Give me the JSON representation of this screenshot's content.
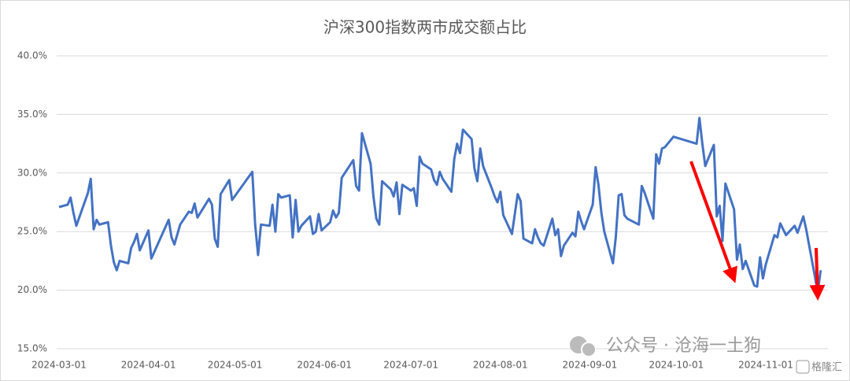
{
  "chart_data": {
    "type": "line",
    "title": "沪深300指数两市成交额占比",
    "x": [
      "2024-03-01",
      "2024-03-04",
      "2024-03-05",
      "2024-03-06",
      "2024-03-07",
      "2024-03-11",
      "2024-03-12",
      "2024-03-13",
      "2024-03-14",
      "2024-03-15",
      "2024-03-18",
      "2024-03-19",
      "2024-03-20",
      "2024-03-21",
      "2024-03-22",
      "2024-03-25",
      "2024-03-26",
      "2024-03-27",
      "2024-03-28",
      "2024-03-29",
      "2024-04-01",
      "2024-04-02",
      "2024-04-08",
      "2024-04-09",
      "2024-04-10",
      "2024-04-12",
      "2024-04-15",
      "2024-04-16",
      "2024-04-17",
      "2024-04-18",
      "2024-04-22",
      "2024-04-23",
      "2024-04-24",
      "2024-04-25",
      "2024-04-26",
      "2024-04-29",
      "2024-04-30",
      "2024-05-07",
      "2024-05-08",
      "2024-05-09",
      "2024-05-10",
      "2024-05-13",
      "2024-05-14",
      "2024-05-15",
      "2024-05-16",
      "2024-05-17",
      "2024-05-20",
      "2024-05-21",
      "2024-05-22",
      "2024-05-23",
      "2024-05-24",
      "2024-05-27",
      "2024-05-28",
      "2024-05-29",
      "2024-05-30",
      "2024-05-31",
      "2024-06-03",
      "2024-06-04",
      "2024-06-05",
      "2024-06-06",
      "2024-06-07",
      "2024-06-11",
      "2024-06-12",
      "2024-06-13",
      "2024-06-14",
      "2024-06-17",
      "2024-06-18",
      "2024-06-19",
      "2024-06-20",
      "2024-06-21",
      "2024-06-24",
      "2024-06-25",
      "2024-06-26",
      "2024-06-27",
      "2024-06-28",
      "2024-07-01",
      "2024-07-02",
      "2024-07-03",
      "2024-07-04",
      "2024-07-05",
      "2024-07-08",
      "2024-07-09",
      "2024-07-10",
      "2024-07-11",
      "2024-07-12",
      "2024-07-15",
      "2024-07-16",
      "2024-07-17",
      "2024-07-18",
      "2024-07-19",
      "2024-07-22",
      "2024-07-23",
      "2024-07-24",
      "2024-07-25",
      "2024-07-26",
      "2024-07-29",
      "2024-07-30",
      "2024-07-31",
      "2024-08-01",
      "2024-08-02",
      "2024-08-05",
      "2024-08-06",
      "2024-08-07",
      "2024-08-08",
      "2024-08-09",
      "2024-08-12",
      "2024-08-13",
      "2024-08-14",
      "2024-08-15",
      "2024-08-16",
      "2024-08-19",
      "2024-08-20",
      "2024-08-21",
      "2024-08-22",
      "2024-08-23",
      "2024-08-26",
      "2024-08-27",
      "2024-08-28",
      "2024-08-29",
      "2024-08-30",
      "2024-09-02",
      "2024-09-03",
      "2024-09-04",
      "2024-09-05",
      "2024-09-06",
      "2024-09-09",
      "2024-09-10",
      "2024-09-11",
      "2024-09-12",
      "2024-09-13",
      "2024-09-14",
      "2024-09-18",
      "2024-09-19",
      "2024-09-20",
      "2024-09-23",
      "2024-09-24",
      "2024-09-25",
      "2024-09-26",
      "2024-09-27",
      "2024-09-30",
      "2024-10-08",
      "2024-10-09",
      "2024-10-10",
      "2024-10-11",
      "2024-10-14",
      "2024-10-15",
      "2024-10-16",
      "2024-10-17",
      "2024-10-18",
      "2024-10-21",
      "2024-10-22",
      "2024-10-23",
      "2024-10-24",
      "2024-10-25",
      "2024-10-28",
      "2024-10-29",
      "2024-10-30",
      "2024-10-31",
      "2024-11-01",
      "2024-11-04",
      "2024-11-05",
      "2024-11-06",
      "2024-11-07",
      "2024-11-08",
      "2024-11-11",
      "2024-11-12",
      "2024-11-13",
      "2024-11-14",
      "2024-11-15",
      "2024-11-18",
      "2024-11-19",
      "2024-11-20"
    ],
    "values": [
      27.1,
      27.3,
      27.9,
      26.6,
      25.5,
      28.3,
      29.5,
      25.2,
      26.0,
      25.6,
      25.8,
      23.8,
      22.4,
      21.7,
      22.5,
      22.3,
      23.6,
      24.1,
      24.8,
      23.4,
      25.1,
      22.7,
      26.0,
      24.5,
      23.9,
      25.6,
      26.7,
      26.6,
      27.4,
      26.2,
      27.8,
      27.3,
      24.4,
      23.7,
      28.2,
      29.4,
      27.7,
      30.1,
      25.6,
      23.0,
      25.6,
      25.5,
      27.3,
      25.0,
      28.2,
      27.9,
      28.1,
      24.5,
      27.7,
      25.0,
      25.5,
      26.3,
      24.8,
      25.0,
      26.5,
      25.1,
      25.8,
      26.8,
      26.2,
      26.6,
      29.6,
      31.1,
      28.9,
      28.5,
      33.4,
      30.8,
      28.0,
      26.1,
      25.6,
      29.3,
      28.6,
      28.0,
      29.2,
      26.5,
      29.0,
      28.5,
      28.7,
      27.2,
      31.4,
      30.8,
      30.3,
      29.4,
      29.0,
      30.1,
      29.5,
      28.4,
      31.2,
      32.5,
      31.7,
      33.7,
      32.9,
      30.4,
      29.3,
      32.1,
      30.6,
      28.7,
      28.0,
      27.5,
      28.4,
      26.4,
      24.8,
      26.5,
      28.2,
      27.6,
      24.4,
      24.0,
      25.2,
      24.5,
      24.0,
      23.8,
      26.1,
      24.7,
      25.2,
      22.9,
      23.8,
      24.9,
      24.6,
      26.7,
      25.9,
      25.2,
      27.3,
      30.5,
      29.0,
      26.6,
      25.0,
      22.3,
      24.5,
      28.1,
      28.2,
      26.4,
      26.1,
      25.6,
      28.9,
      28.3,
      26.1,
      31.6,
      30.8,
      32.1,
      32.2,
      33.1,
      32.5,
      34.7,
      32.5,
      30.6,
      32.4,
      26.3,
      27.2,
      24.2,
      29.1,
      26.9,
      22.6,
      23.9,
      21.8,
      22.5,
      20.4,
      20.3,
      22.8,
      21.0,
      22.2,
      24.7,
      24.5,
      25.7,
      25.2,
      24.7,
      25.5,
      24.9,
      25.6,
      26.3,
      25.2,
      21.2,
      19.8,
      21.7
    ],
    "color": "#4472c4",
    "xlim": [
      "2024-03-01",
      "2024-11-22"
    ],
    "xticks": [
      "2024-03-01",
      "2024-04-01",
      "2024-05-01",
      "2024-06-01",
      "2024-07-01",
      "2024-08-01",
      "2024-09-01",
      "2024-10-01",
      "2024-11-01"
    ],
    "ylim": [
      15,
      40
    ],
    "yticks": [
      {
        "value": 15,
        "label": "15.0%"
      },
      {
        "value": 20,
        "label": "20.0%"
      },
      {
        "value": 25,
        "label": "25.0%"
      },
      {
        "value": 30,
        "label": "30.0%"
      },
      {
        "value": 35,
        "label": "35.0%"
      },
      {
        "value": 40,
        "label": "40.0%"
      }
    ],
    "grid": true,
    "annotations": [
      "公众号 · 沧海一土狗",
      "格隆汇"
    ]
  }
}
